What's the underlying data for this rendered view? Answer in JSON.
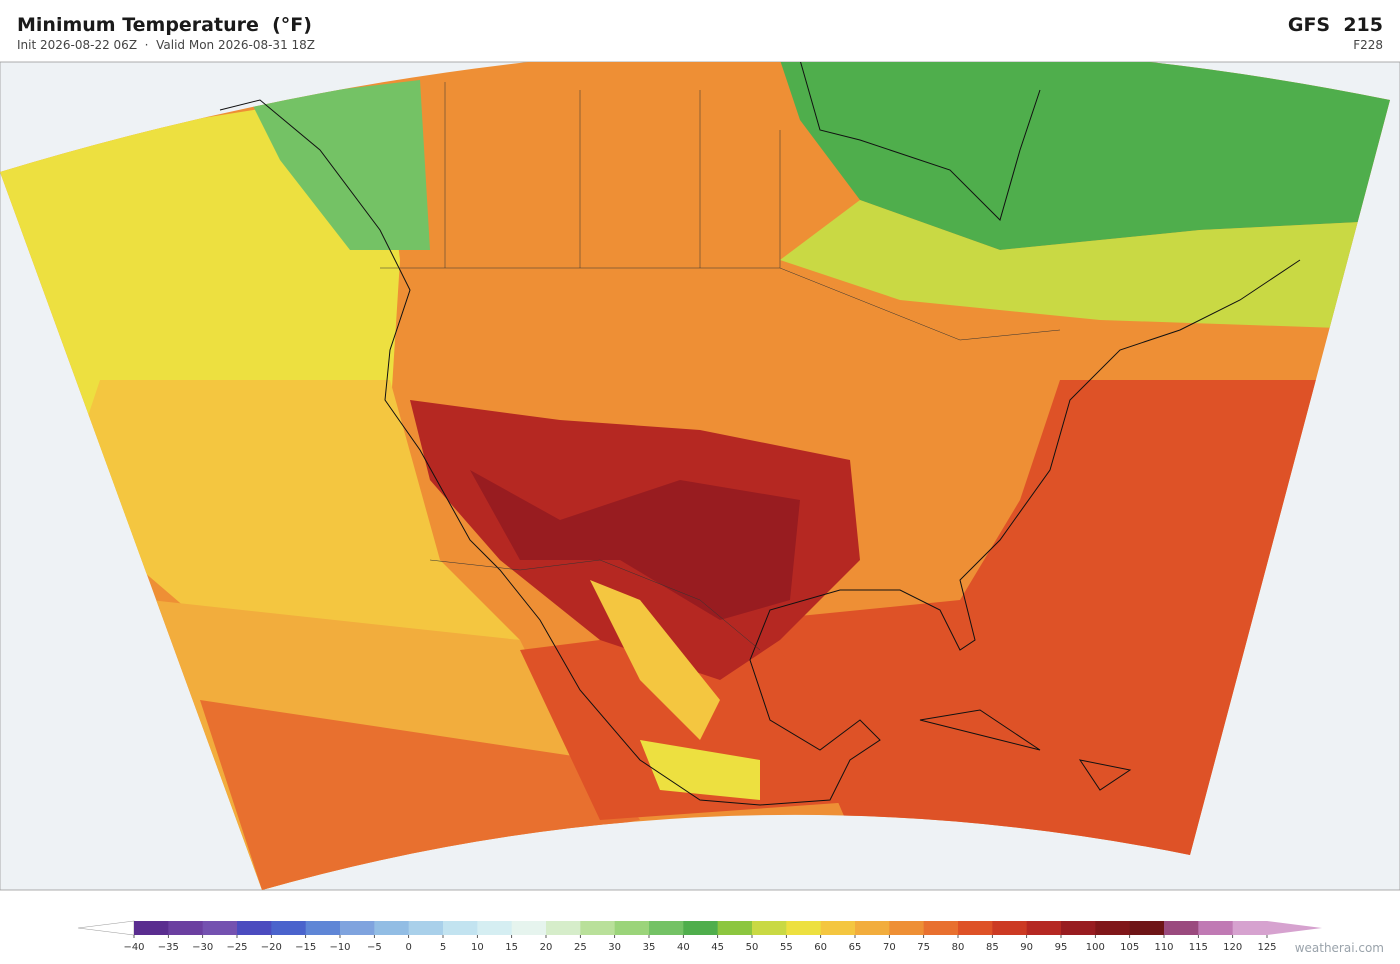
{
  "header": {
    "title": "Minimum Temperature  (°F)",
    "subtitle": "Init 2026-08-22 06Z  ·  Valid Mon 2026-08-31 18Z",
    "model": "GFS  215",
    "forecast_hour": "F228"
  },
  "colorbar": {
    "ticks": [
      {
        "value": -40,
        "label": "−40"
      },
      {
        "value": -35,
        "label": "−35"
      },
      {
        "value": -30,
        "label": "−30"
      },
      {
        "value": -25,
        "label": "−25"
      },
      {
        "value": -20,
        "label": "−20"
      },
      {
        "value": -15,
        "label": "−15"
      },
      {
        "value": -10,
        "label": "−10"
      },
      {
        "value": -5,
        "label": "−5"
      },
      0,
      5,
      10,
      15,
      20,
      25,
      30,
      35,
      40,
      45,
      50,
      55,
      60,
      65,
      70,
      75,
      80,
      85,
      90,
      95,
      100,
      105,
      110,
      115,
      120,
      125
    ],
    "colors": [
      "#5a2d8f",
      "#6b3fa0",
      "#7451b0",
      "#4b4bbf",
      "#4a63cc",
      "#5f86d6",
      "#7fa3de",
      "#92bde4",
      "#a9d0ea",
      "#c2e3f0",
      "#d5eef2",
      "#e6f4ee",
      "#d6edca",
      "#b9e09a",
      "#9bd47a",
      "#74c265",
      "#4fae4c",
      "#8cc63f",
      "#c9d944",
      "#ede040",
      "#f4c640",
      "#f2ad3d",
      "#ee8f35",
      "#e8702f",
      "#de5227",
      "#cc3a23",
      "#b52822",
      "#981c20",
      "#801619",
      "#6e1517",
      "#9a4a7e",
      "#c07ab4",
      "#d6a2cf"
    ],
    "under_color": "#ffffff",
    "over_color": "#d6a2cf"
  },
  "watermark": "weatherai.com"
}
